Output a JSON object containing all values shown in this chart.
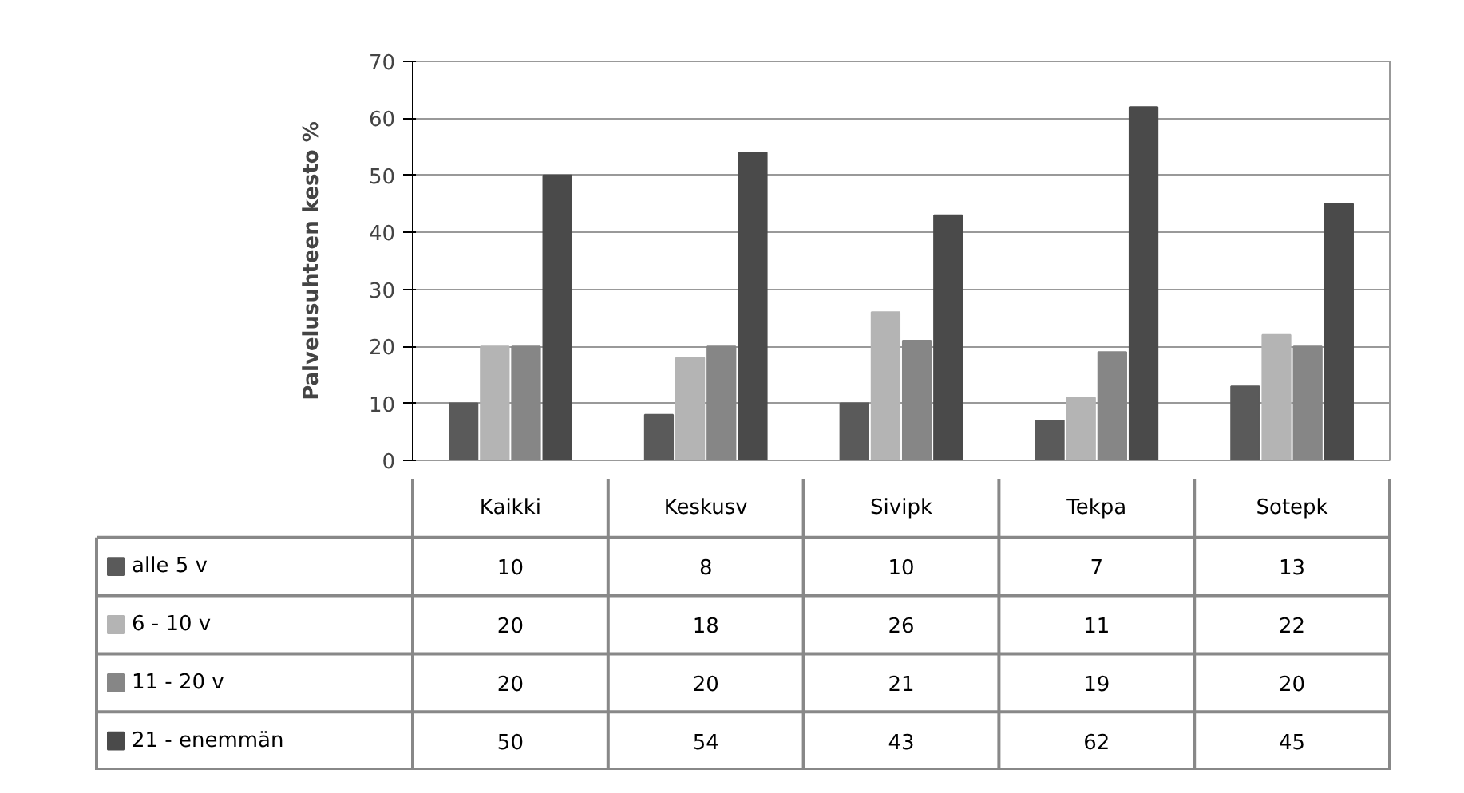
{
  "chart_data": {
    "type": "bar",
    "ylabel": "Palvelusuhteen kesto %",
    "categories": [
      "Kaikki",
      "Keskusv",
      "Sivipk",
      "Tekpa",
      "Sotepk"
    ],
    "series": [
      {
        "name": "alle 5 v",
        "color": "#5a5a5a",
        "values": [
          10,
          8,
          10,
          7,
          13
        ]
      },
      {
        "name": "6 - 10 v",
        "color": "#b4b4b4",
        "values": [
          20,
          18,
          26,
          11,
          22
        ]
      },
      {
        "name": "11 - 20 v",
        "color": "#868686",
        "values": [
          20,
          20,
          21,
          19,
          20
        ]
      },
      {
        "name": "21 - enemmän",
        "color": "#4a4a4a",
        "values": [
          50,
          54,
          43,
          62,
          45
        ]
      }
    ],
    "ylim": [
      0,
      70
    ],
    "yticks": [
      0,
      10,
      20,
      30,
      40,
      50,
      60,
      70
    ],
    "grid": "y",
    "legend": "bottom",
    "data_labels": true
  }
}
